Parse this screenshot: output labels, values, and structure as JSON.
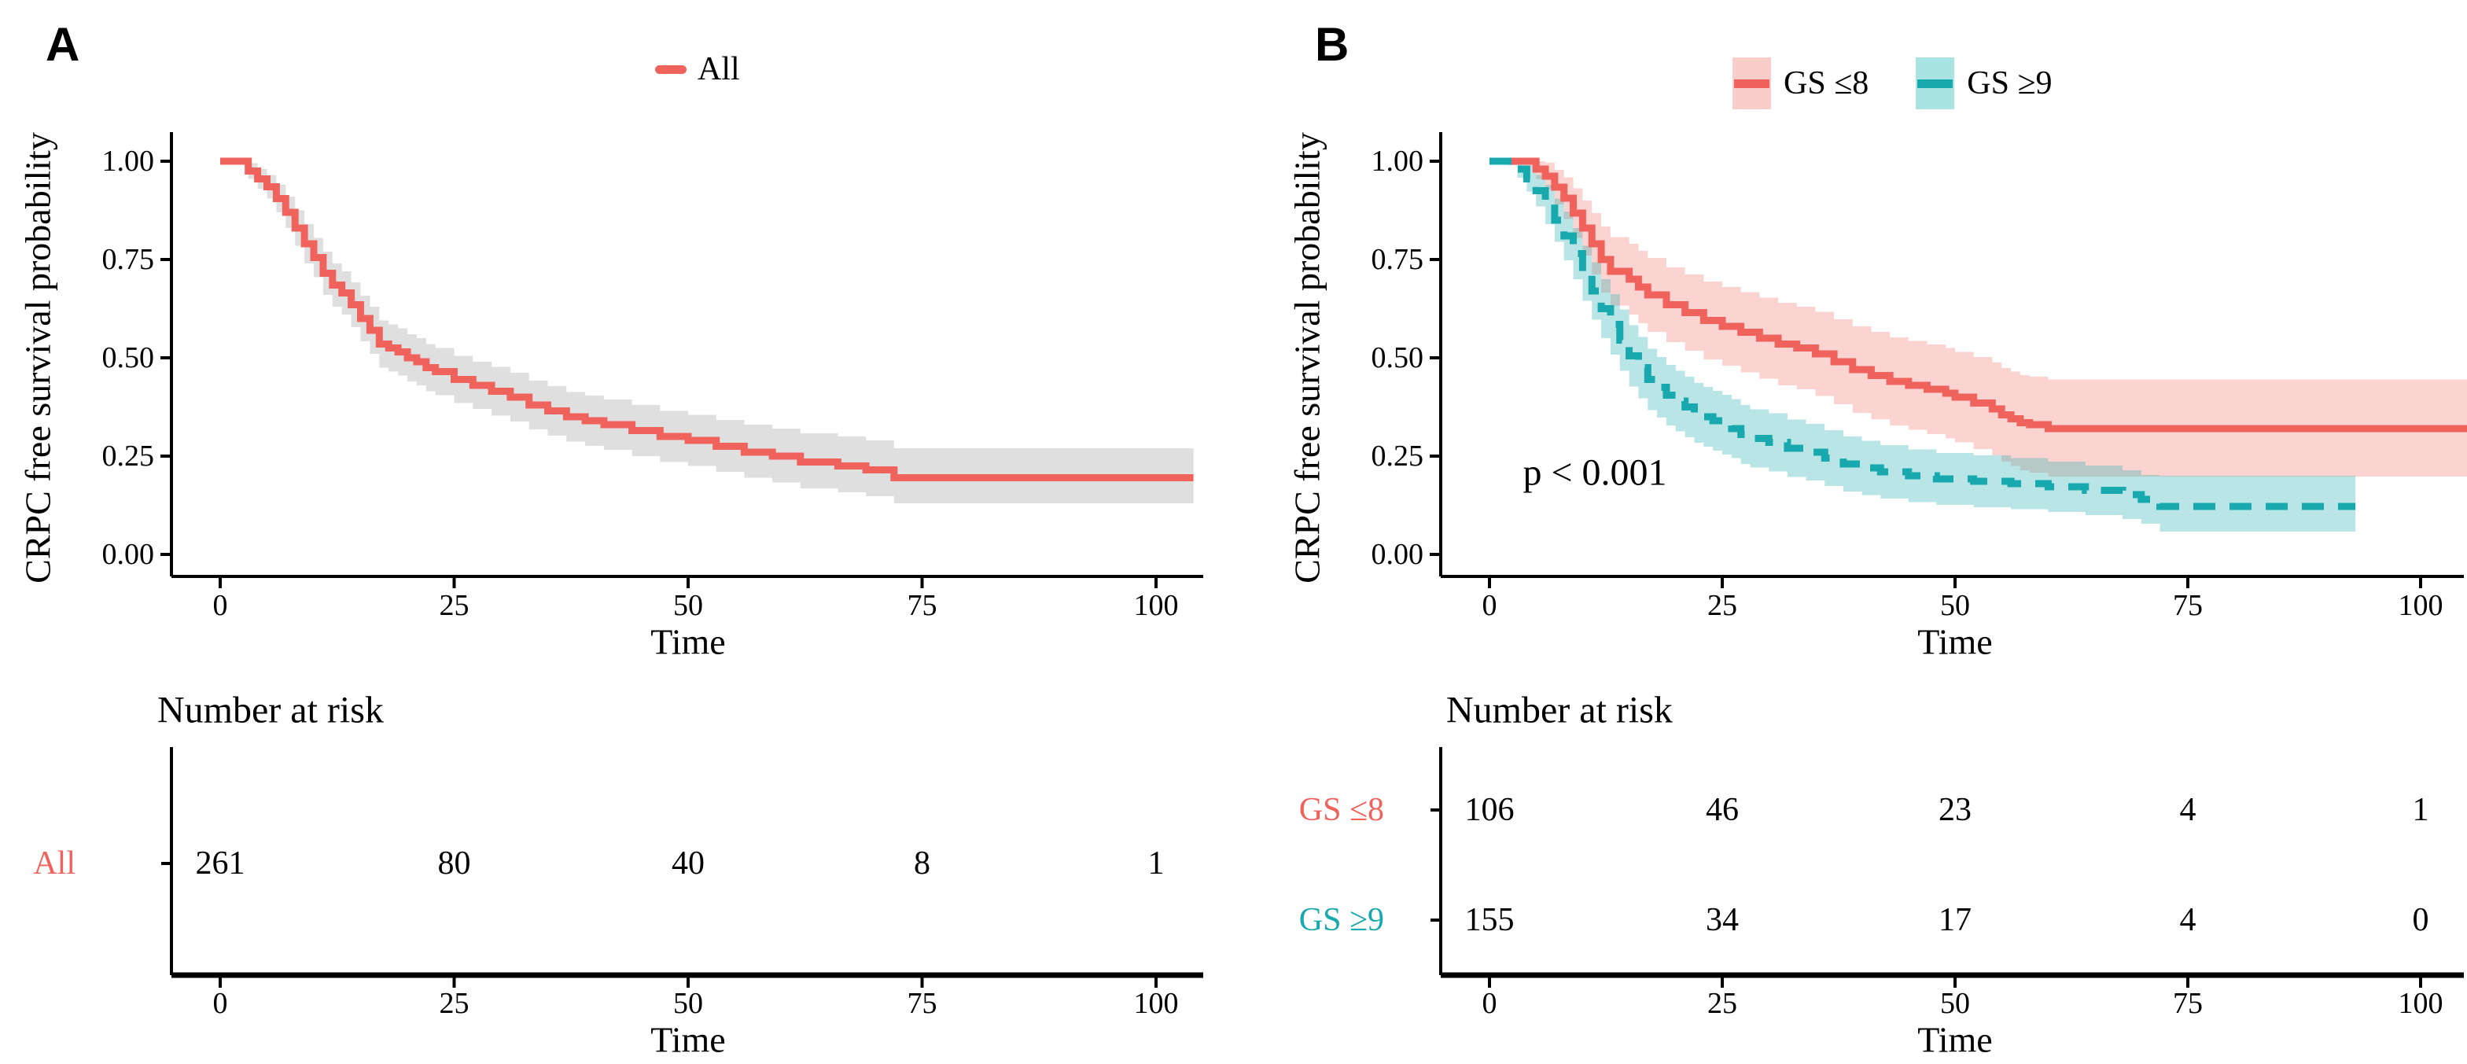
{
  "figure_kind": "kaplan-meier-survival-figure",
  "chart_data": [
    {
      "type": "line",
      "panel_label": "A",
      "ylabel": "CRPC free survival probability",
      "xlabel": "Time",
      "xlim": [
        0,
        105
      ],
      "ylim": [
        0,
        1
      ],
      "xticks": [
        0,
        25,
        50,
        75,
        100
      ],
      "yticks": [
        "1.00",
        "0.75",
        "0.50",
        "0.25",
        "0.00"
      ],
      "legend_position": "top",
      "grid": false,
      "series": [
        {
          "name": "All",
          "color": "#F0635D",
          "band_color": "rgba(110,110,110,0.22)",
          "dashed": false,
          "points": [
            [
              0,
              1.0,
              1.0,
              1.0
            ],
            [
              2.5,
              1.0,
              0.99,
              1.0
            ],
            [
              3,
              0.975,
              0.955,
              0.995
            ],
            [
              4,
              0.955,
              0.93,
              0.98
            ],
            [
              5,
              0.935,
              0.905,
              0.965
            ],
            [
              6,
              0.905,
              0.87,
              0.94
            ],
            [
              7,
              0.87,
              0.83,
              0.91
            ],
            [
              8,
              0.83,
              0.785,
              0.875
            ],
            [
              9,
              0.79,
              0.74,
              0.84
            ],
            [
              10,
              0.755,
              0.705,
              0.805
            ],
            [
              11,
              0.715,
              0.66,
              0.77
            ],
            [
              12,
              0.685,
              0.63,
              0.74
            ],
            [
              13,
              0.665,
              0.61,
              0.72
            ],
            [
              14,
              0.635,
              0.578,
              0.692
            ],
            [
              15,
              0.6,
              0.542,
              0.658
            ],
            [
              16,
              0.57,
              0.51,
              0.63
            ],
            [
              17,
              0.535,
              0.475,
              0.595
            ],
            [
              18,
              0.525,
              0.465,
              0.585
            ],
            [
              19,
              0.515,
              0.455,
              0.575
            ],
            [
              20,
              0.5,
              0.44,
              0.56
            ],
            [
              21,
              0.49,
              0.43,
              0.55
            ],
            [
              22,
              0.475,
              0.415,
              0.535
            ],
            [
              23,
              0.465,
              0.405,
              0.525
            ],
            [
              25,
              0.445,
              0.385,
              0.505
            ],
            [
              27,
              0.43,
              0.37,
              0.49
            ],
            [
              29,
              0.415,
              0.353,
              0.477
            ],
            [
              31,
              0.4,
              0.338,
              0.462
            ],
            [
              33,
              0.38,
              0.318,
              0.442
            ],
            [
              35,
              0.365,
              0.302,
              0.428
            ],
            [
              37,
              0.35,
              0.287,
              0.413
            ],
            [
              39,
              0.34,
              0.276,
              0.404
            ],
            [
              41,
              0.33,
              0.266,
              0.394
            ],
            [
              44,
              0.315,
              0.25,
              0.38
            ],
            [
              47,
              0.3,
              0.235,
              0.365
            ],
            [
              50,
              0.29,
              0.225,
              0.355
            ],
            [
              53,
              0.275,
              0.21,
              0.342
            ],
            [
              56,
              0.26,
              0.195,
              0.33
            ],
            [
              59,
              0.25,
              0.183,
              0.32
            ],
            [
              62,
              0.235,
              0.168,
              0.308
            ],
            [
              66,
              0.225,
              0.158,
              0.3
            ],
            [
              69,
              0.215,
              0.148,
              0.29
            ],
            [
              72,
              0.195,
              0.13,
              0.27
            ],
            [
              104,
              0.195,
              0.13,
              0.27
            ]
          ]
        }
      ],
      "risk_table": {
        "title": "Number at risk",
        "xlabel": "Time",
        "times": [
          0,
          25,
          50,
          75,
          100
        ],
        "rows": [
          {
            "label": "All",
            "color": "#F0635D",
            "counts": [
              261,
              80,
              40,
              8,
              1
            ]
          }
        ]
      }
    },
    {
      "type": "line",
      "panel_label": "B",
      "ylabel": "CRPC free survival probability",
      "xlabel": "Time",
      "xlim": [
        0,
        105
      ],
      "ylim": [
        0,
        1
      ],
      "xticks": [
        0,
        25,
        50,
        75,
        100
      ],
      "yticks": [
        "1.00",
        "0.75",
        "0.50",
        "0.25",
        "0.00"
      ],
      "legend_position": "top",
      "grid": false,
      "annotation": {
        "text": "p < 0.001",
        "t": 11.5,
        "s": 0.208
      },
      "series": [
        {
          "name": "GS ≤8",
          "color": "#F0635D",
          "band_color": "rgba(241,99,93,0.28)",
          "key_fill": "#F9CDC9",
          "dashed": false,
          "points": [
            [
              0,
              1.0,
              1.0,
              1.0
            ],
            [
              4,
              1.0,
              0.985,
              1.0
            ],
            [
              5,
              0.98,
              0.955,
              1.0
            ],
            [
              6,
              0.962,
              0.928,
              0.996
            ],
            [
              7,
              0.934,
              0.89,
              0.978
            ],
            [
              8,
              0.906,
              0.853,
              0.959
            ],
            [
              9,
              0.868,
              0.805,
              0.931
            ],
            [
              10,
              0.83,
              0.76,
              0.9
            ],
            [
              11,
              0.79,
              0.712,
              0.868
            ],
            [
              12,
              0.75,
              0.666,
              0.834
            ],
            [
              13,
              0.72,
              0.633,
              0.807
            ],
            [
              15,
              0.7,
              0.61,
              0.79
            ],
            [
              16,
              0.68,
              0.588,
              0.772
            ],
            [
              17,
              0.66,
              0.566,
              0.754
            ],
            [
              19,
              0.635,
              0.54,
              0.73
            ],
            [
              21,
              0.615,
              0.518,
              0.712
            ],
            [
              23,
              0.595,
              0.496,
              0.694
            ],
            [
              25,
              0.58,
              0.48,
              0.68
            ],
            [
              27,
              0.565,
              0.463,
              0.667
            ],
            [
              29,
              0.55,
              0.447,
              0.653
            ],
            [
              31,
              0.535,
              0.43,
              0.64
            ],
            [
              33,
              0.525,
              0.42,
              0.63
            ],
            [
              35,
              0.51,
              0.403,
              0.617
            ],
            [
              37,
              0.49,
              0.382,
              0.598
            ],
            [
              39,
              0.47,
              0.36,
              0.58
            ],
            [
              41,
              0.455,
              0.344,
              0.566
            ],
            [
              43,
              0.44,
              0.328,
              0.552
            ],
            [
              45,
              0.43,
              0.317,
              0.543
            ],
            [
              47,
              0.42,
              0.306,
              0.534
            ],
            [
              49,
              0.41,
              0.295,
              0.525
            ],
            [
              50,
              0.4,
              0.285,
              0.515
            ],
            [
              52,
              0.385,
              0.268,
              0.502
            ],
            [
              54,
              0.37,
              0.252,
              0.488
            ],
            [
              55,
              0.355,
              0.236,
              0.474
            ],
            [
              56,
              0.345,
              0.225,
              0.465
            ],
            [
              57,
              0.335,
              0.214,
              0.456
            ],
            [
              58,
              0.33,
              0.208,
              0.452
            ],
            [
              60,
              0.32,
              0.198,
              0.445
            ],
            [
              105,
              0.32,
              0.198,
              0.445
            ]
          ]
        },
        {
          "name": "GS ≥9",
          "color": "#17A9AD",
          "band_color": "rgba(23,169,173,0.30)",
          "key_fill": "#A9E4E2",
          "dashed": true,
          "points": [
            [
              0,
              1.0,
              1.0,
              1.0
            ],
            [
              2,
              1.0,
              0.99,
              1.0
            ],
            [
              3,
              0.98,
              0.958,
              1.0
            ],
            [
              4,
              0.955,
              0.923,
              0.987
            ],
            [
              5,
              0.925,
              0.885,
              0.965
            ],
            [
              6,
              0.89,
              0.84,
              0.94
            ],
            [
              7,
              0.85,
              0.795,
              0.905
            ],
            [
              8,
              0.81,
              0.748,
              0.872
            ],
            [
              9,
              0.765,
              0.7,
              0.83
            ],
            [
              10,
              0.715,
              0.645,
              0.785
            ],
            [
              11,
              0.67,
              0.597,
              0.743
            ],
            [
              12,
              0.625,
              0.55,
              0.7
            ],
            [
              13,
              0.585,
              0.508,
              0.662
            ],
            [
              14,
              0.545,
              0.467,
              0.623
            ],
            [
              15,
              0.505,
              0.427,
              0.583
            ],
            [
              16,
              0.475,
              0.397,
              0.553
            ],
            [
              17,
              0.445,
              0.367,
              0.523
            ],
            [
              18,
              0.425,
              0.348,
              0.502
            ],
            [
              19,
              0.405,
              0.328,
              0.482
            ],
            [
              20,
              0.39,
              0.313,
              0.467
            ],
            [
              21,
              0.375,
              0.298,
              0.452
            ],
            [
              22,
              0.36,
              0.284,
              0.436
            ],
            [
              23,
              0.35,
              0.274,
              0.426
            ],
            [
              24,
              0.34,
              0.264,
              0.416
            ],
            [
              25,
              0.33,
              0.254,
              0.406
            ],
            [
              26,
              0.32,
              0.245,
              0.395
            ],
            [
              27,
              0.305,
              0.23,
              0.38
            ],
            [
              28,
              0.295,
              0.221,
              0.369
            ],
            [
              30,
              0.285,
              0.211,
              0.359
            ],
            [
              32,
              0.27,
              0.197,
              0.343
            ],
            [
              34,
              0.26,
              0.188,
              0.332
            ],
            [
              36,
              0.245,
              0.174,
              0.316
            ],
            [
              38,
              0.23,
              0.16,
              0.3
            ],
            [
              40,
              0.22,
              0.151,
              0.289
            ],
            [
              42,
              0.21,
              0.142,
              0.278
            ],
            [
              45,
              0.2,
              0.133,
              0.267
            ],
            [
              48,
              0.192,
              0.126,
              0.258
            ],
            [
              52,
              0.186,
              0.12,
              0.252
            ],
            [
              56,
              0.18,
              0.115,
              0.245
            ],
            [
              60,
              0.172,
              0.108,
              0.236
            ],
            [
              64,
              0.163,
              0.1,
              0.226
            ],
            [
              68,
              0.152,
              0.09,
              0.214
            ],
            [
              70,
              0.14,
              0.078,
              0.202
            ],
            [
              72,
              0.122,
              0.058,
              0.2
            ],
            [
              93,
              0.122,
              0.058,
              0.2
            ]
          ]
        }
      ],
      "risk_table": {
        "title": "Number at risk",
        "xlabel": "Time",
        "times": [
          0,
          25,
          50,
          75,
          100
        ],
        "rows": [
          {
            "label": "GS ≤8",
            "color": "#F0635D",
            "counts": [
              106,
              46,
              23,
              4,
              1
            ]
          },
          {
            "label": "GS ≥9",
            "color": "#17A9AD",
            "counts": [
              155,
              34,
              17,
              4,
              0
            ]
          }
        ]
      }
    }
  ]
}
